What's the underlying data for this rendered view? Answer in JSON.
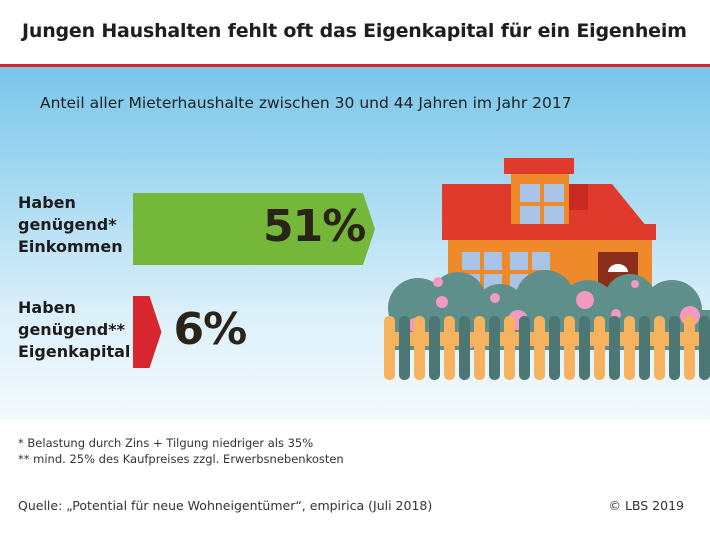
{
  "title": "Jungen Haushalten fehlt oft das Eigenkapital für ein Eigenheim",
  "subtitle": "Anteil aller Mieterhaushalte zwischen 30 und 44 Jahren im Jahr 2017",
  "chart_data": {
    "type": "bar",
    "orientation": "horizontal",
    "categories": [
      [
        "Haben",
        "genügend*",
        "Einkommen"
      ],
      [
        "Haben",
        "genügend**",
        "Eigenkapital"
      ]
    ],
    "values": [
      51,
      6
    ],
    "value_labels": [
      "51%",
      "6%"
    ],
    "colors": [
      "#74b739",
      "#d8262f"
    ],
    "xlim": [
      0,
      100
    ]
  },
  "footnotes": [
    "*  Belastung durch Zins + Tilgung niedriger als 35%",
    "** mind. 25% des Kaufpreises zzgl. Erwerbsnebenkosten"
  ],
  "source": "Quelle: „Potential für neue Wohneigentümer“, empirica (Juli 2018)",
  "copyright": "© LBS 2019",
  "colors": {
    "accent": "#d8262f",
    "bar_green": "#74b739",
    "bar_red": "#d8262f"
  }
}
